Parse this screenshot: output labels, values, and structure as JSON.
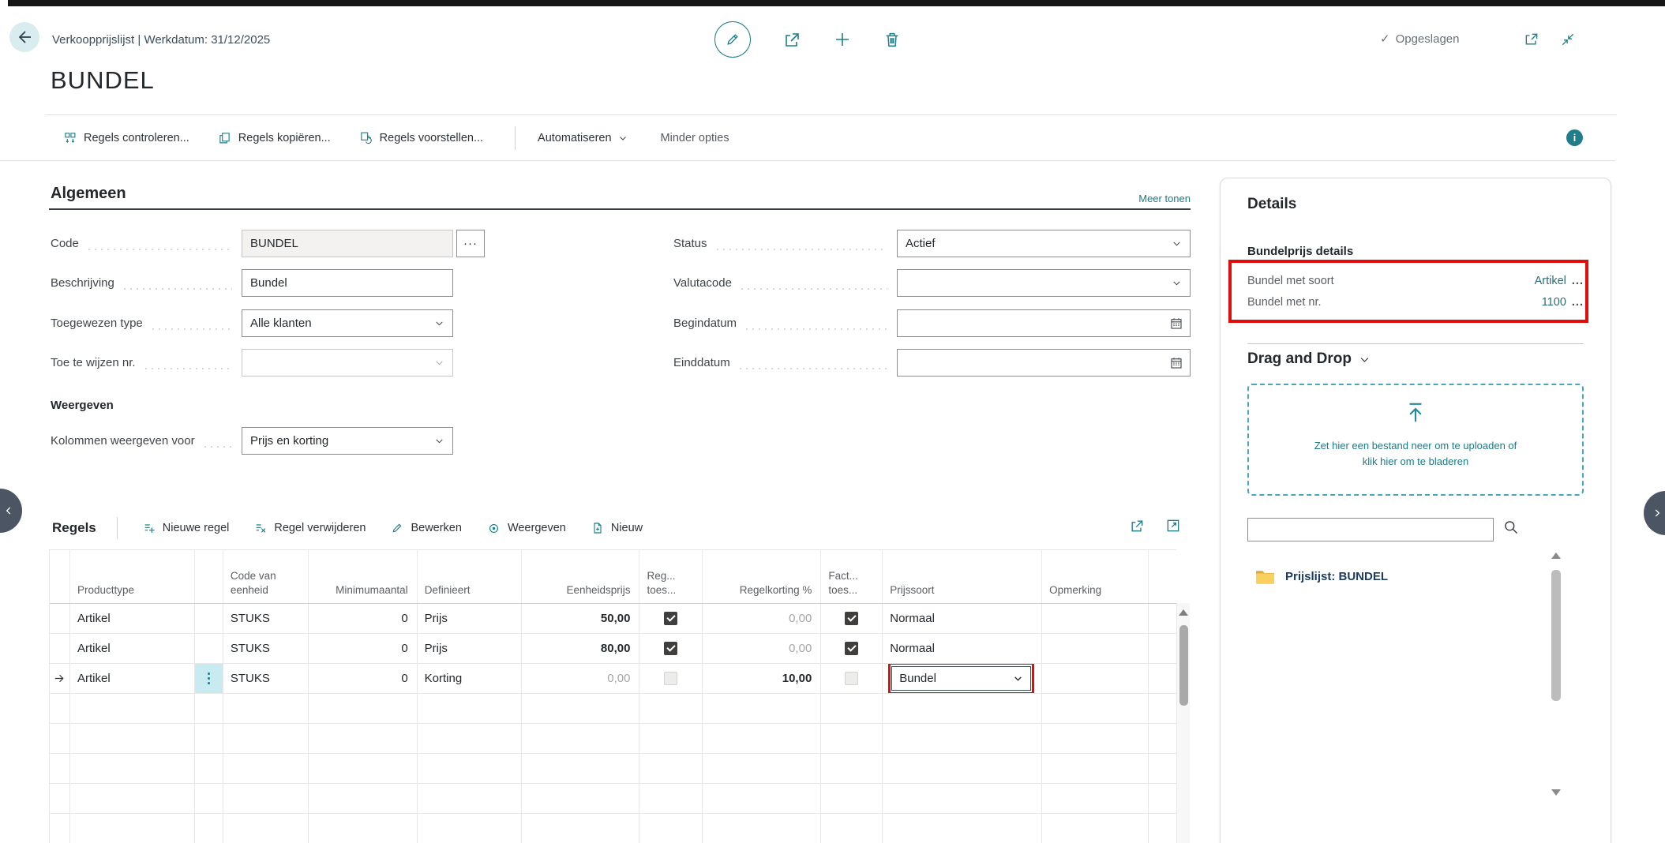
{
  "app": {
    "caption": "Verkoopprijslijst | Werkdatum: 31/12/2025",
    "title": "BUNDEL",
    "saved_status": "Opgeslagen"
  },
  "ui": {
    "saved_check": "✓",
    "info_glyph": "i",
    "ellipsis": "···"
  },
  "action_bar": {
    "items": [
      {
        "label": "Regels controleren..."
      },
      {
        "label": "Regels kopiëren..."
      },
      {
        "label": "Regels voorstellen..."
      }
    ],
    "automate_label": "Automatiseren",
    "more_options_label": "Minder opties"
  },
  "general": {
    "section_title": "Algemeen",
    "show_more_label": "Meer tonen",
    "fields_left": [
      {
        "label": "Code",
        "value": "BUNDEL"
      },
      {
        "label": "Beschrijving",
        "value": "Bundel"
      },
      {
        "label": "Toegewezen type",
        "value": "Alle klanten"
      },
      {
        "label": "Toe te wijzen nr.",
        "value": ""
      }
    ],
    "fields_right": [
      {
        "label": "Status",
        "value": "Actief"
      },
      {
        "label": "Valutacode",
        "value": ""
      },
      {
        "label": "Begindatum",
        "value": ""
      },
      {
        "label": "Einddatum",
        "value": ""
      }
    ],
    "display_group_label": "Weergeven",
    "columns_field": {
      "label": "Kolommen weergeven voor",
      "value": "Prijs en korting"
    }
  },
  "lines": {
    "section_title": "Regels",
    "toolbar": [
      {
        "label": "Nieuwe regel"
      },
      {
        "label": "Regel verwijderen"
      },
      {
        "label": "Bewerken"
      },
      {
        "label": "Weergeven"
      },
      {
        "label": "Nieuw"
      }
    ],
    "columns": [
      {
        "label": "Producttype"
      },
      {
        "label": "Code van",
        "label2": "eenheid"
      },
      {
        "label": "Minimumaantal"
      },
      {
        "label": "Definieert"
      },
      {
        "label": "Eenheidsprijs"
      },
      {
        "label": "Reg...",
        "label2": "toes..."
      },
      {
        "label": "Regelkorting %"
      },
      {
        "label": "Fact...",
        "label2": "toes..."
      },
      {
        "label": "Prijssoort"
      },
      {
        "label": "Opmerking"
      }
    ],
    "rows": [
      {
        "producttype": "Artikel",
        "unit_code": "STUKS",
        "min_qty": "0",
        "defines": "Prijs",
        "unit_price": "50,00",
        "line_discount_allowed": true,
        "line_discount": "0,00",
        "invoice_discount_allowed": true,
        "price_type": "Normaal",
        "comment": ""
      },
      {
        "producttype": "Artikel",
        "unit_code": "STUKS",
        "min_qty": "0",
        "defines": "Prijs",
        "unit_price": "80,00",
        "line_discount_allowed": true,
        "line_discount": "0,00",
        "invoice_discount_allowed": true,
        "price_type": "Normaal",
        "comment": ""
      },
      {
        "producttype": "Artikel",
        "unit_code": "STUKS",
        "min_qty": "0",
        "defines": "Korting",
        "unit_price": "0,00",
        "line_discount_allowed": false,
        "line_discount": "10,00",
        "invoice_discount_allowed": false,
        "price_type": "Bundel",
        "comment": "",
        "selected": true
      }
    ]
  },
  "details_pane": {
    "title": "Details",
    "bundle_group_title": "Bundelprijs details",
    "rows": [
      {
        "label": "Bundel met soort",
        "value": "Artikel",
        "suffix": "..."
      },
      {
        "label": "Bundel met nr.",
        "value": "1100",
        "suffix": "..."
      }
    ],
    "drag_drop": {
      "title": "Drag and Drop",
      "line1": "Zet hier een bestand neer om te uploaden of",
      "line2": "klik hier om te bladeren"
    },
    "file_item_label": "Prijslijst: BUNDEL"
  },
  "colors": {
    "accent": "#1b7e8a",
    "link": "#2a6b7b",
    "highlight_red": "#e00d0d",
    "selected_cell": "#c7ebf1"
  }
}
